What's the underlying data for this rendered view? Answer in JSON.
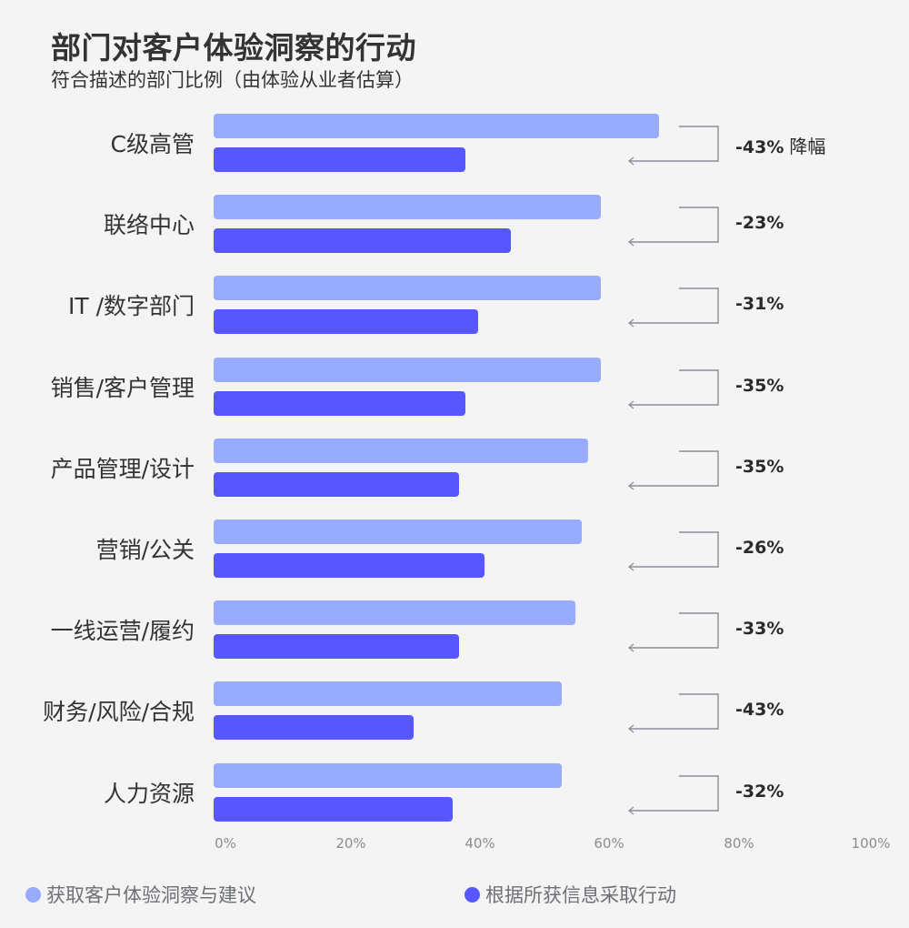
{
  "title": "部门对客户体验洞察的行动",
  "subtitle": "符合描述的部门比例（由体验从业者估算）",
  "colors": {
    "background": "#f4f4f4",
    "series_light": "#97abff",
    "series_dark": "#5757ff",
    "bracket": "#8a8f96",
    "text": "#333333",
    "axis_text": "#8a8d91"
  },
  "legend": [
    {
      "label": "获取客户体验洞察与建议",
      "color": "#97abff"
    },
    {
      "label": "根据所获信息采取行动",
      "color": "#5757ff"
    }
  ],
  "axis": {
    "ticks": [
      "0%",
      "20%",
      "40%",
      "60%",
      "80%",
      "100%"
    ]
  },
  "delta_suffix": "降幅",
  "rows": [
    {
      "label": "C级高管",
      "insight": 69,
      "action": 39,
      "delta": "-43%"
    },
    {
      "label": "联络中心",
      "insight": 60,
      "action": 46,
      "delta": "-23%"
    },
    {
      "label": "IT /数字部门",
      "insight": 60,
      "action": 41,
      "delta": "-31%"
    },
    {
      "label": "销售/客户管理",
      "insight": 60,
      "action": 39,
      "delta": "-35%"
    },
    {
      "label": "产品管理/设计",
      "insight": 58,
      "action": 38,
      "delta": "-35%"
    },
    {
      "label": "营销/公关",
      "insight": 57,
      "action": 42,
      "delta": "-26%"
    },
    {
      "label": "一线运营/履约",
      "insight": 56,
      "action": 38,
      "delta": "-33%"
    },
    {
      "label": "财务/风险/合规",
      "insight": 54,
      "action": 31,
      "delta": "-43%"
    },
    {
      "label": "人力资源",
      "insight": 54,
      "action": 37,
      "delta": "-32%"
    }
  ],
  "chart_data": {
    "type": "bar",
    "orientation": "horizontal",
    "title": "部门对客户体验洞察的行动",
    "subtitle": "符合描述的部门比例（由体验从业者估算）",
    "categories": [
      "C级高管",
      "联络中心",
      "IT /数字部门",
      "销售/客户管理",
      "产品管理/设计",
      "营销/公关",
      "一线运营/履约",
      "财务/风险/合规",
      "人力资源"
    ],
    "series": [
      {
        "name": "获取客户体验洞察与建议",
        "values": [
          69,
          60,
          60,
          60,
          58,
          57,
          56,
          54,
          54
        ]
      },
      {
        "name": "根据所获信息采取行动",
        "values": [
          39,
          46,
          41,
          39,
          38,
          42,
          38,
          31,
          37
        ]
      }
    ],
    "annotations": [
      "-43% 降幅",
      "-23%",
      "-31%",
      "-35%",
      "-35%",
      "-26%",
      "-33%",
      "-43%",
      "-32%"
    ],
    "xlabel": "",
    "ylabel": "",
    "xlim": [
      0,
      100
    ],
    "xticks": [
      "0%",
      "20%",
      "40%",
      "60%",
      "80%",
      "100%"
    ],
    "grid": false,
    "legend_position": "bottom"
  }
}
